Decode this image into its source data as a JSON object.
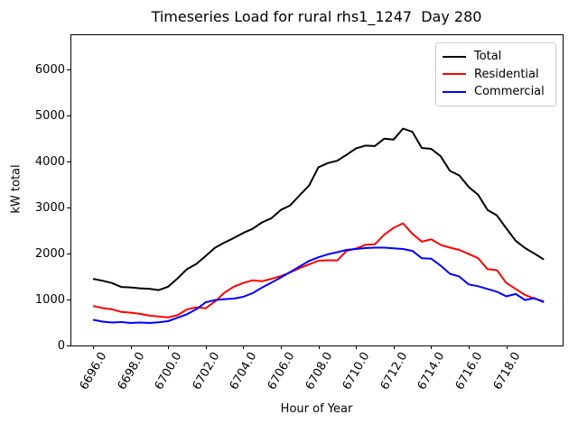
{
  "figure": {
    "title": "Timeseries Load for rural rhs1_1247  Day 280"
  },
  "chart_data": {
    "type": "line",
    "title": "Timeseries Load for rural rhs1_1247  Day 280",
    "xlabel": "Hour of Year",
    "ylabel": "kW total",
    "xlim": [
      6694.8,
      6721.0
    ],
    "ylim": [
      0,
      6773
    ],
    "grid": false,
    "legend_position": "upper right",
    "x_tick_labels": [
      "6696.0",
      "6698.0",
      "6700.0",
      "6702.0",
      "6704.0",
      "6706.0",
      "6708.0",
      "6710.0",
      "6712.0",
      "6714.0",
      "6716.0",
      "6718.0"
    ],
    "y_tick_labels": [
      "0",
      "1000",
      "2000",
      "3000",
      "4000",
      "5000",
      "6000"
    ],
    "x": [
      6696.0,
      6696.5,
      6697.0,
      6697.5,
      6698.0,
      6698.5,
      6699.0,
      6699.5,
      6700.0,
      6700.5,
      6701.0,
      6701.5,
      6702.0,
      6702.5,
      6703.0,
      6703.5,
      6704.0,
      6704.5,
      6705.0,
      6705.5,
      6706.0,
      6706.5,
      6707.0,
      6707.5,
      6708.0,
      6708.5,
      6709.0,
      6709.5,
      6710.0,
      6710.5,
      6711.0,
      6711.5,
      6712.0,
      6712.5,
      6713.0,
      6713.5,
      6714.0,
      6714.5,
      6715.0,
      6715.5,
      6716.0,
      6716.5,
      6717.0,
      6717.5,
      6718.0,
      6718.5,
      6719.0,
      6719.5,
      6720.0
    ],
    "series": [
      {
        "name": "Total",
        "color": "#000000",
        "values": [
          1450,
          1410,
          1360,
          1275,
          1265,
          1245,
          1235,
          1205,
          1280,
          1460,
          1660,
          1775,
          1950,
          2130,
          2240,
          2340,
          2450,
          2540,
          2680,
          2770,
          2950,
          3050,
          3270,
          3480,
          3880,
          3970,
          4020,
          4150,
          4290,
          4350,
          4340,
          4500,
          4480,
          4720,
          4650,
          4300,
          4280,
          4120,
          3800,
          3700,
          3450,
          3280,
          2950,
          2830,
          2550,
          2280,
          2120,
          2000,
          1870
        ]
      },
      {
        "name": "Residential",
        "color": "#ff0000",
        "values": [
          860,
          815,
          790,
          730,
          715,
          690,
          650,
          630,
          610,
          660,
          785,
          830,
          810,
          960,
          1150,
          1280,
          1360,
          1420,
          1400,
          1450,
          1510,
          1590,
          1685,
          1765,
          1845,
          1855,
          1850,
          2060,
          2110,
          2190,
          2200,
          2410,
          2560,
          2660,
          2430,
          2260,
          2310,
          2190,
          2130,
          2080,
          1990,
          1900,
          1660,
          1640,
          1360,
          1230,
          1100,
          1020,
          960
        ]
      },
      {
        "name": "Commercial",
        "color": "#0000ff",
        "values": [
          560,
          520,
          500,
          510,
          490,
          500,
          490,
          505,
          530,
          605,
          680,
          790,
          940,
          990,
          1010,
          1020,
          1060,
          1140,
          1260,
          1370,
          1480,
          1600,
          1720,
          1840,
          1920,
          1985,
          2030,
          2080,
          2100,
          2120,
          2130,
          2130,
          2115,
          2100,
          2060,
          1900,
          1890,
          1740,
          1560,
          1500,
          1330,
          1290,
          1230,
          1170,
          1070,
          1120,
          990,
          1030,
          940
        ]
      }
    ]
  }
}
